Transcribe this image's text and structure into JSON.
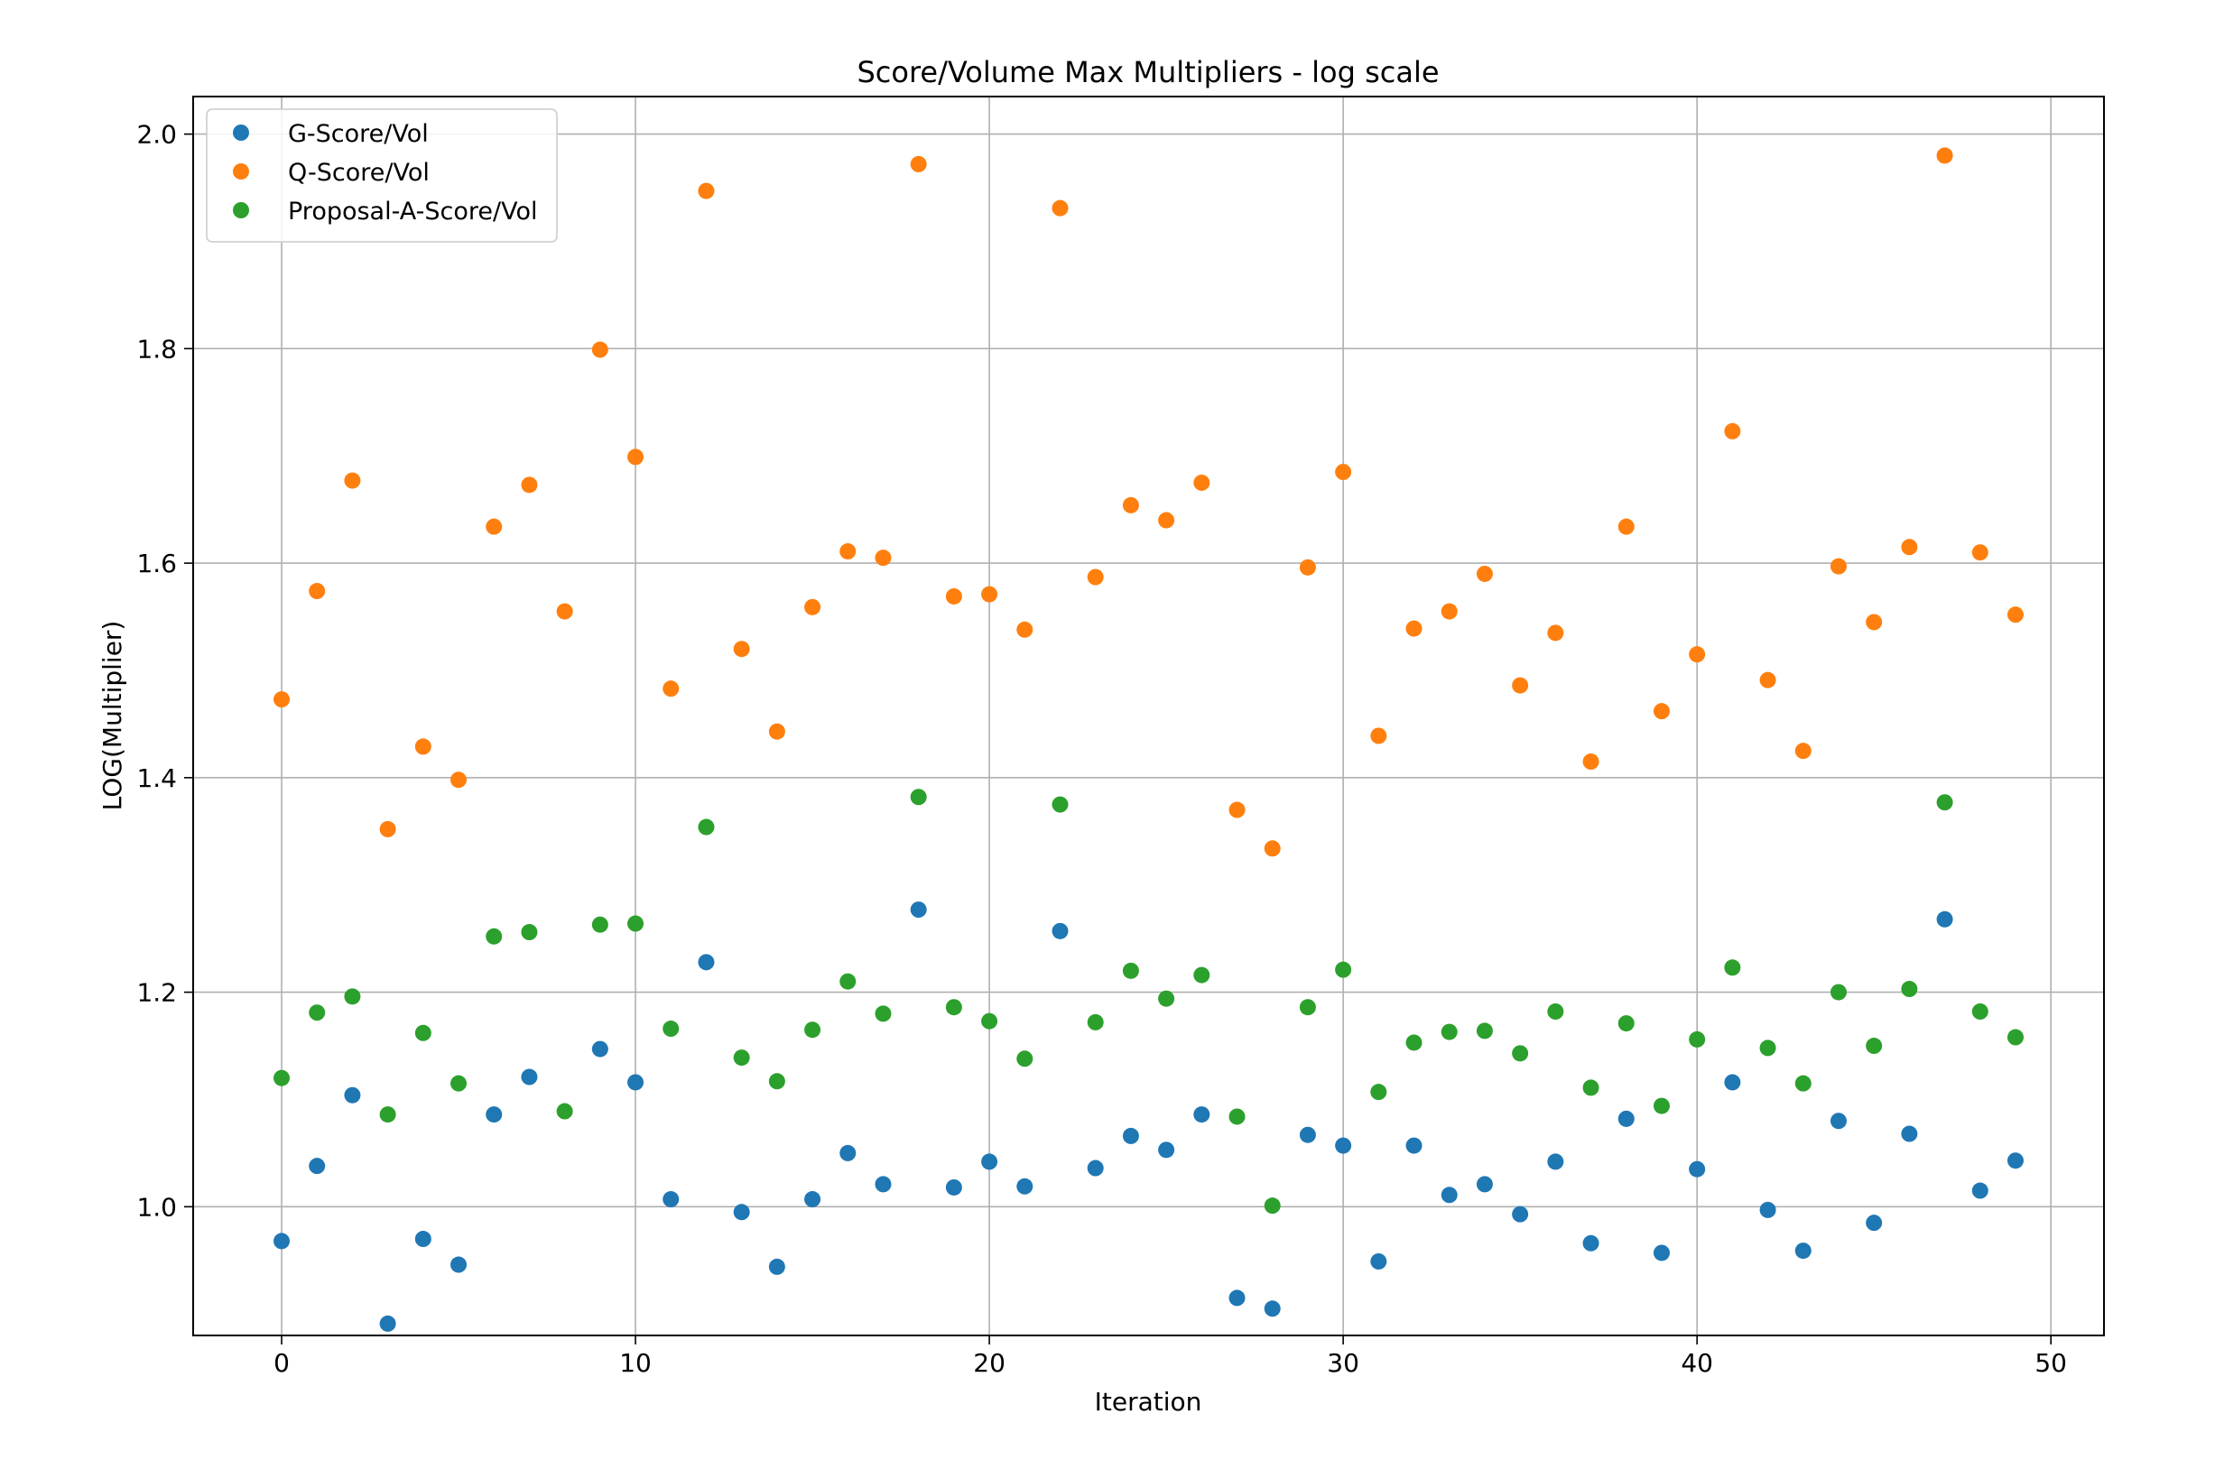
{
  "chart_data": {
    "type": "scatter",
    "title": "Score/Volume Max Multipliers - log scale",
    "xlabel": "Iteration",
    "ylabel": "LOG(Multiplier)",
    "xlim": [
      -2.5,
      51.5
    ],
    "ylim": [
      0.88,
      2.035
    ],
    "xticks": [
      0,
      10,
      20,
      30,
      40,
      50
    ],
    "yticks": [
      1.0,
      1.2,
      1.4,
      1.6,
      1.8,
      2.0
    ],
    "ytick_labels": [
      "1.0",
      "1.2",
      "1.4",
      "1.6",
      "1.8",
      "2.0"
    ],
    "grid": true,
    "legend_position": "top-left",
    "x": [
      0,
      1,
      2,
      3,
      4,
      5,
      6,
      7,
      8,
      9,
      10,
      11,
      12,
      13,
      14,
      15,
      16,
      17,
      18,
      19,
      20,
      21,
      22,
      23,
      24,
      25,
      26,
      27,
      28,
      29,
      30,
      31,
      32,
      33,
      34,
      35,
      36,
      37,
      38,
      39,
      40,
      41,
      42,
      43,
      44,
      45,
      46,
      47,
      48,
      49
    ],
    "series": [
      {
        "name": "G-Score/Vol",
        "color": "#1f77b4",
        "values": [
          0.968,
          1.038,
          1.104,
          0.891,
          0.97,
          0.946,
          1.086,
          1.121,
          null,
          1.147,
          1.116,
          1.007,
          1.228,
          0.995,
          0.944,
          1.007,
          1.05,
          1.021,
          1.277,
          1.018,
          1.042,
          1.019,
          1.257,
          1.036,
          1.066,
          1.053,
          1.086,
          0.915,
          0.905,
          1.067,
          1.057,
          0.949,
          1.057,
          1.011,
          1.021,
          0.993,
          1.042,
          0.966,
          1.082,
          0.957,
          1.035,
          1.116,
          0.997,
          0.959,
          1.08,
          0.985,
          1.068,
          1.268,
          1.015,
          1.043
        ]
      },
      {
        "name": "Q-Score/Vol",
        "color": "#ff7f0e",
        "values": [
          1.473,
          1.574,
          1.677,
          1.352,
          1.429,
          1.398,
          1.634,
          1.673,
          1.555,
          1.799,
          1.699,
          1.483,
          1.947,
          1.52,
          1.443,
          1.559,
          1.611,
          1.605,
          1.972,
          1.569,
          1.571,
          1.538,
          1.931,
          1.587,
          1.654,
          1.64,
          1.675,
          1.37,
          1.334,
          1.596,
          1.685,
          1.439,
          1.539,
          1.555,
          1.59,
          1.486,
          1.535,
          1.415,
          1.634,
          1.462,
          1.515,
          1.723,
          1.491,
          1.425,
          1.597,
          1.545,
          1.615,
          1.98,
          1.61,
          1.552
        ]
      },
      {
        "name": "Proposal-A-Score/Vol",
        "color": "#2ca02c",
        "values": [
          1.12,
          1.181,
          1.196,
          1.086,
          1.162,
          1.115,
          1.252,
          1.256,
          1.089,
          1.263,
          1.264,
          1.166,
          1.354,
          1.139,
          1.117,
          1.165,
          1.21,
          1.18,
          1.382,
          1.186,
          1.173,
          1.138,
          1.375,
          1.172,
          1.22,
          1.194,
          1.216,
          1.084,
          1.001,
          1.186,
          1.221,
          1.107,
          1.153,
          1.163,
          1.164,
          1.143,
          1.182,
          1.111,
          1.171,
          1.094,
          1.156,
          1.223,
          1.148,
          1.115,
          1.2,
          1.15,
          1.203,
          1.377,
          1.182,
          1.158
        ]
      }
    ]
  }
}
